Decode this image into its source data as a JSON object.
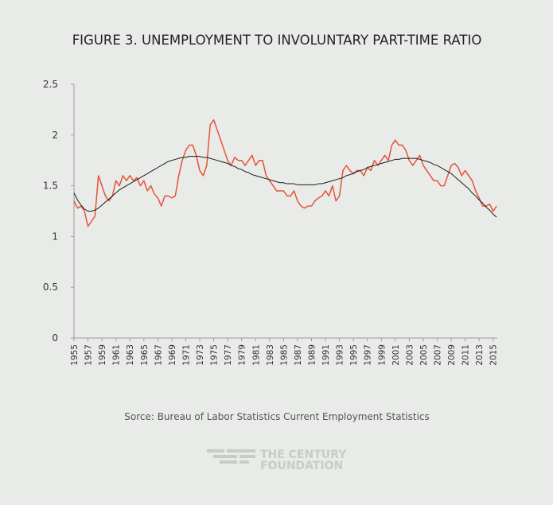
{
  "chart_data": {
    "type": "line",
    "title": "FIGURE 3. UNEMPLOYMENT TO INVOLUNTARY PART-TIME RATIO",
    "source": "Sorce: Bureau of Labor Statistics Current Employment Statistics",
    "logo": [
      "THE CENTURY",
      "FOUNDATION"
    ],
    "x": [
      1955,
      1955.5,
      1956,
      1956.5,
      1957,
      1957.5,
      1958,
      1958.5,
      1959,
      1959.5,
      1960,
      1960.5,
      1961,
      1961.5,
      1962,
      1962.5,
      1963,
      1963.5,
      1964,
      1964.5,
      1965,
      1965.5,
      1966,
      1966.5,
      1967,
      1967.5,
      1968,
      1968.5,
      1969,
      1969.5,
      1970,
      1970.5,
      1971,
      1971.5,
      1972,
      1972.5,
      1973,
      1973.5,
      1974,
      1974.5,
      1975,
      1975.5,
      1976,
      1976.5,
      1977,
      1977.5,
      1978,
      1978.5,
      1979,
      1979.5,
      1980,
      1980.5,
      1981,
      1981.5,
      1982,
      1982.5,
      1983,
      1983.5,
      1984,
      1984.5,
      1985,
      1985.5,
      1986,
      1986.5,
      1987,
      1987.5,
      1988,
      1988.5,
      1989,
      1989.5,
      1990,
      1990.5,
      1991,
      1991.5,
      1992,
      1992.5,
      1993,
      1993.5,
      1994,
      1994.5,
      1995,
      1995.5,
      1996,
      1996.5,
      1997,
      1997.5,
      1998,
      1998.5,
      1999,
      1999.5,
      2000,
      2000.5,
      2001,
      2001.5,
      2002,
      2002.5,
      2003,
      2003.5,
      2004,
      2004.5,
      2005,
      2005.5,
      2006,
      2006.5,
      2007,
      2007.5,
      2008,
      2008.5,
      2009,
      2009.5,
      2010,
      2010.5,
      2011,
      2011.5,
      2012,
      2012.5,
      2013,
      2013.5,
      2014,
      2014.5,
      2015,
      2015.5
    ],
    "series": [
      {
        "color": "#e8523a",
        "values": [
          1.35,
          1.28,
          1.3,
          1.25,
          1.1,
          1.15,
          1.2,
          1.6,
          1.5,
          1.4,
          1.35,
          1.4,
          1.55,
          1.5,
          1.6,
          1.55,
          1.6,
          1.55,
          1.58,
          1.5,
          1.55,
          1.45,
          1.5,
          1.42,
          1.38,
          1.3,
          1.4,
          1.4,
          1.38,
          1.4,
          1.6,
          1.75,
          1.85,
          1.9,
          1.9,
          1.8,
          1.65,
          1.6,
          1.7,
          2.1,
          2.15,
          2.05,
          1.95,
          1.85,
          1.75,
          1.7,
          1.78,
          1.75,
          1.75,
          1.7,
          1.75,
          1.8,
          1.7,
          1.75,
          1.75,
          1.6,
          1.55,
          1.5,
          1.45,
          1.45,
          1.45,
          1.4,
          1.4,
          1.45,
          1.35,
          1.3,
          1.28,
          1.3,
          1.3,
          1.35,
          1.38,
          1.4,
          1.45,
          1.4,
          1.5,
          1.35,
          1.4,
          1.65,
          1.7,
          1.65,
          1.62,
          1.65,
          1.65,
          1.6,
          1.68,
          1.65,
          1.75,
          1.7,
          1.75,
          1.8,
          1.75,
          1.9,
          1.95,
          1.9,
          1.9,
          1.85,
          1.75,
          1.7,
          1.75,
          1.8,
          1.7,
          1.65,
          1.6,
          1.55,
          1.55,
          1.5,
          1.5,
          1.6,
          1.7,
          1.72,
          1.68,
          1.6,
          1.65,
          1.6,
          1.55,
          1.45,
          1.38,
          1.3,
          1.3,
          1.32,
          1.25,
          1.3
        ]
      },
      {
        "color": "#1a1a1a",
        "values": [
          1.43,
          1.36,
          1.31,
          1.27,
          1.25,
          1.25,
          1.26,
          1.28,
          1.31,
          1.34,
          1.37,
          1.4,
          1.43,
          1.46,
          1.48,
          1.5,
          1.52,
          1.54,
          1.56,
          1.58,
          1.6,
          1.62,
          1.64,
          1.66,
          1.68,
          1.7,
          1.72,
          1.74,
          1.75,
          1.76,
          1.77,
          1.78,
          1.78,
          1.79,
          1.79,
          1.79,
          1.79,
          1.78,
          1.78,
          1.77,
          1.76,
          1.75,
          1.74,
          1.73,
          1.72,
          1.7,
          1.69,
          1.67,
          1.66,
          1.64,
          1.63,
          1.61,
          1.6,
          1.59,
          1.58,
          1.57,
          1.56,
          1.55,
          1.54,
          1.53,
          1.53,
          1.52,
          1.52,
          1.52,
          1.51,
          1.51,
          1.51,
          1.51,
          1.51,
          1.51,
          1.52,
          1.52,
          1.53,
          1.54,
          1.55,
          1.56,
          1.57,
          1.58,
          1.6,
          1.61,
          1.62,
          1.64,
          1.65,
          1.66,
          1.68,
          1.69,
          1.7,
          1.71,
          1.72,
          1.73,
          1.74,
          1.75,
          1.76,
          1.76,
          1.77,
          1.77,
          1.77,
          1.77,
          1.77,
          1.76,
          1.75,
          1.74,
          1.73,
          1.71,
          1.7,
          1.68,
          1.66,
          1.64,
          1.62,
          1.59,
          1.56,
          1.53,
          1.5,
          1.47,
          1.43,
          1.4,
          1.36,
          1.33,
          1.29,
          1.26,
          1.22,
          1.19
        ]
      }
    ],
    "xlim": [
      1955,
      2015.6
    ],
    "xticks": [
      1955,
      1957,
      1959,
      1961,
      1963,
      1965,
      1967,
      1969,
      1971,
      1973,
      1975,
      1977,
      1979,
      1981,
      1983,
      1985,
      1987,
      1989,
      1991,
      1993,
      1995,
      1997,
      1999,
      2001,
      2003,
      2005,
      2007,
      2009,
      2011,
      2013,
      2015
    ],
    "ylim": [
      0,
      2.5
    ],
    "yticks": [
      0,
      0.5,
      1,
      1.5,
      2,
      2.5
    ]
  }
}
